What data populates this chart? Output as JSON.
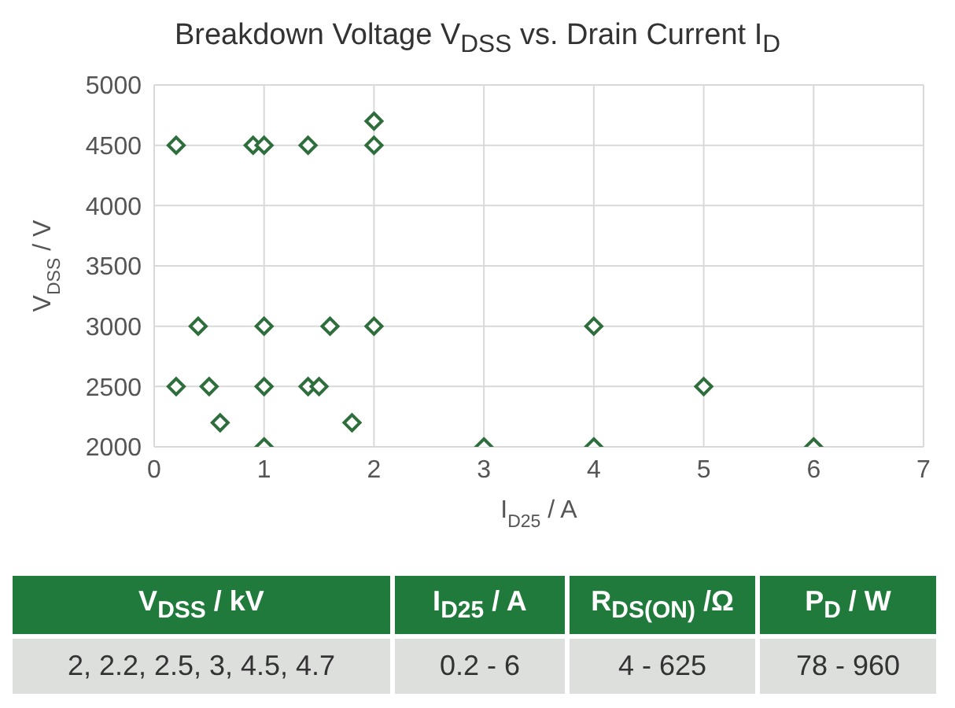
{
  "chart_data": {
    "type": "scatter",
    "title": "Breakdown Voltage V$_{DSS}$ vs. Drain Current I$_{D}$",
    "xlabel": "I$_{D25}$ / A",
    "ylabel": "V$_{DSS}$ / V",
    "x": [
      0.2,
      0.9,
      1,
      1.4,
      2,
      2,
      0.4,
      1,
      1.6,
      2,
      4,
      0.2,
      0.5,
      1,
      1.4,
      1.5,
      5,
      0.6,
      1.8,
      1,
      3,
      4,
      6
    ],
    "series": [
      {
        "color": "#2e6e3c",
        "values": [
          4500,
          4500,
          4500,
          4500,
          4500,
          4700,
          3000,
          3000,
          3000,
          3000,
          3000,
          2500,
          2500,
          2500,
          2500,
          2500,
          2500,
          2200,
          2200,
          2000,
          2000,
          2000,
          2000
        ]
      }
    ],
    "xlim": [
      0,
      7
    ],
    "xticks": [
      0,
      1,
      2,
      3,
      4,
      5,
      6,
      7
    ],
    "ylim": [
      2000,
      5000
    ],
    "yticks": [
      2000,
      2500,
      3000,
      3500,
      4000,
      4500,
      5000
    ],
    "grid": true,
    "marker": "diamond",
    "annotations": [
      "V$_{DSS}$ / kV",
      "I$_{D25}$ / A",
      "R$_{DS(ON)}$ /Ω",
      "P$_{D}$ / W",
      "2, 2.2, 2.5, 3, 4.5, 4.7",
      "0.2 - 6",
      "4 - 625",
      "78 - 960"
    ]
  }
}
